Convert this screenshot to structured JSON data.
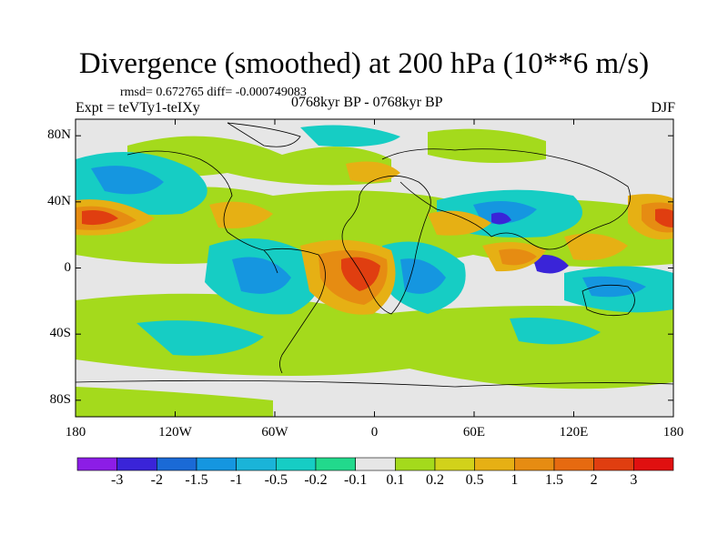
{
  "title": "Divergence (smoothed) at 200 hPa (10**6 m/s)",
  "stats": "rmsd= 0.672765 diff= -0.000749083",
  "experiment": "Expt = teVTy1-teIXy",
  "period": "0768kyr BP - 0768kyr BP",
  "season": "DJF",
  "y_axis": {
    "labels": [
      "80N",
      "40N",
      "0",
      "40S",
      "80S"
    ],
    "values": [
      80,
      40,
      0,
      -40,
      -80
    ]
  },
  "x_axis": {
    "labels": [
      "180",
      "120W",
      "60W",
      "0",
      "60E",
      "120E",
      "180"
    ],
    "values": [
      -180,
      -120,
      -60,
      0,
      60,
      120,
      180
    ]
  },
  "colorbar": {
    "labels": [
      "-3",
      "-2",
      "-1.5",
      "-1",
      "-0.5",
      "-0.2",
      "-0.1",
      "0.1",
      "0.2",
      "0.5",
      "1",
      "1.5",
      "2",
      "3"
    ],
    "colors": [
      "#8c1de6",
      "#3a24d8",
      "#1a6ad6",
      "#1596e0",
      "#1ab4d8",
      "#16cdc4",
      "#22d98c",
      "#e6e6e6",
      "#a4da1c",
      "#d2d21a",
      "#e6b014",
      "#e68c12",
      "#e66a10",
      "#e03e10",
      "#e01010"
    ]
  },
  "colors": {
    "neutral": "#e6e6e6",
    "coastline": "#000000"
  }
}
